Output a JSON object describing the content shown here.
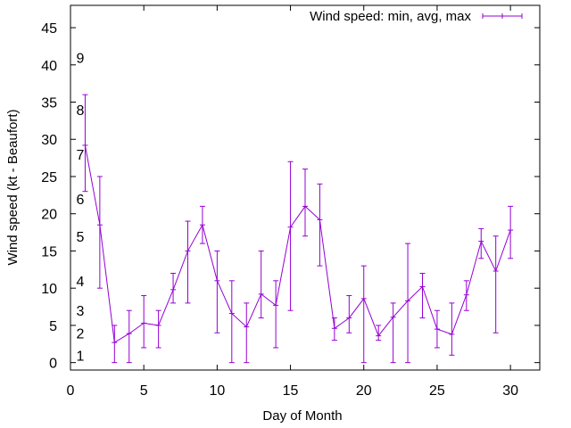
{
  "colors": {
    "series": "#9400d3",
    "axis": "#000000",
    "background": "#ffffff"
  },
  "chart_data": {
    "type": "line",
    "title": "",
    "xlabel": "Day of Month",
    "ylabel": "Wind speed (kt - Beaufort)",
    "xlim": [
      0,
      32
    ],
    "ylim": [
      -1,
      48
    ],
    "xticks": [
      0,
      5,
      10,
      15,
      20,
      25,
      30
    ],
    "yticks": [
      0,
      5,
      10,
      15,
      20,
      25,
      30,
      35,
      40,
      45
    ],
    "grid": false,
    "legend": {
      "position": "top-right",
      "label": "Wind speed: min, avg, max"
    },
    "beaufort_labels": [
      {
        "label": "1",
        "y": 1
      },
      {
        "label": "2",
        "y": 4
      },
      {
        "label": "3",
        "y": 7
      },
      {
        "label": "4",
        "y": 11
      },
      {
        "label": "5",
        "y": 17
      },
      {
        "label": "6",
        "y": 22
      },
      {
        "label": "7",
        "y": 28
      },
      {
        "label": "8",
        "y": 34
      },
      {
        "label": "9",
        "y": 41
      }
    ],
    "series": [
      {
        "name": "Wind speed: min, avg, max",
        "x": [
          1,
          2,
          3,
          4,
          5,
          6,
          7,
          8,
          9,
          10,
          11,
          12,
          13,
          14,
          15,
          16,
          17,
          18,
          19,
          20,
          21,
          22,
          23,
          24,
          25,
          26,
          27,
          28,
          29,
          30
        ],
        "avg": [
          29.2,
          18.5,
          2.7,
          3.9,
          5.3,
          5.0,
          9.8,
          15.0,
          18.5,
          11.0,
          6.6,
          4.8,
          9.2,
          7.7,
          18.2,
          21.0,
          19.2,
          4.6,
          6.0,
          8.6,
          3.6,
          6.1,
          8.3,
          10.2,
          4.5,
          3.8,
          9.1,
          16.3,
          12.3,
          17.8
        ],
        "min": [
          23,
          10,
          0,
          0,
          2,
          2,
          8,
          8,
          16,
          4,
          0,
          0,
          6,
          2,
          7,
          17,
          13,
          3,
          4,
          0,
          3,
          0,
          0,
          6,
          2,
          1,
          7,
          14,
          4,
          14
        ],
        "max": [
          36,
          25,
          5,
          7,
          9,
          7,
          12,
          19,
          21,
          15,
          11,
          8,
          15,
          11,
          27,
          26,
          24,
          6,
          9,
          13,
          5,
          8,
          16,
          12,
          7,
          8,
          11,
          18,
          17,
          21
        ]
      }
    ]
  }
}
